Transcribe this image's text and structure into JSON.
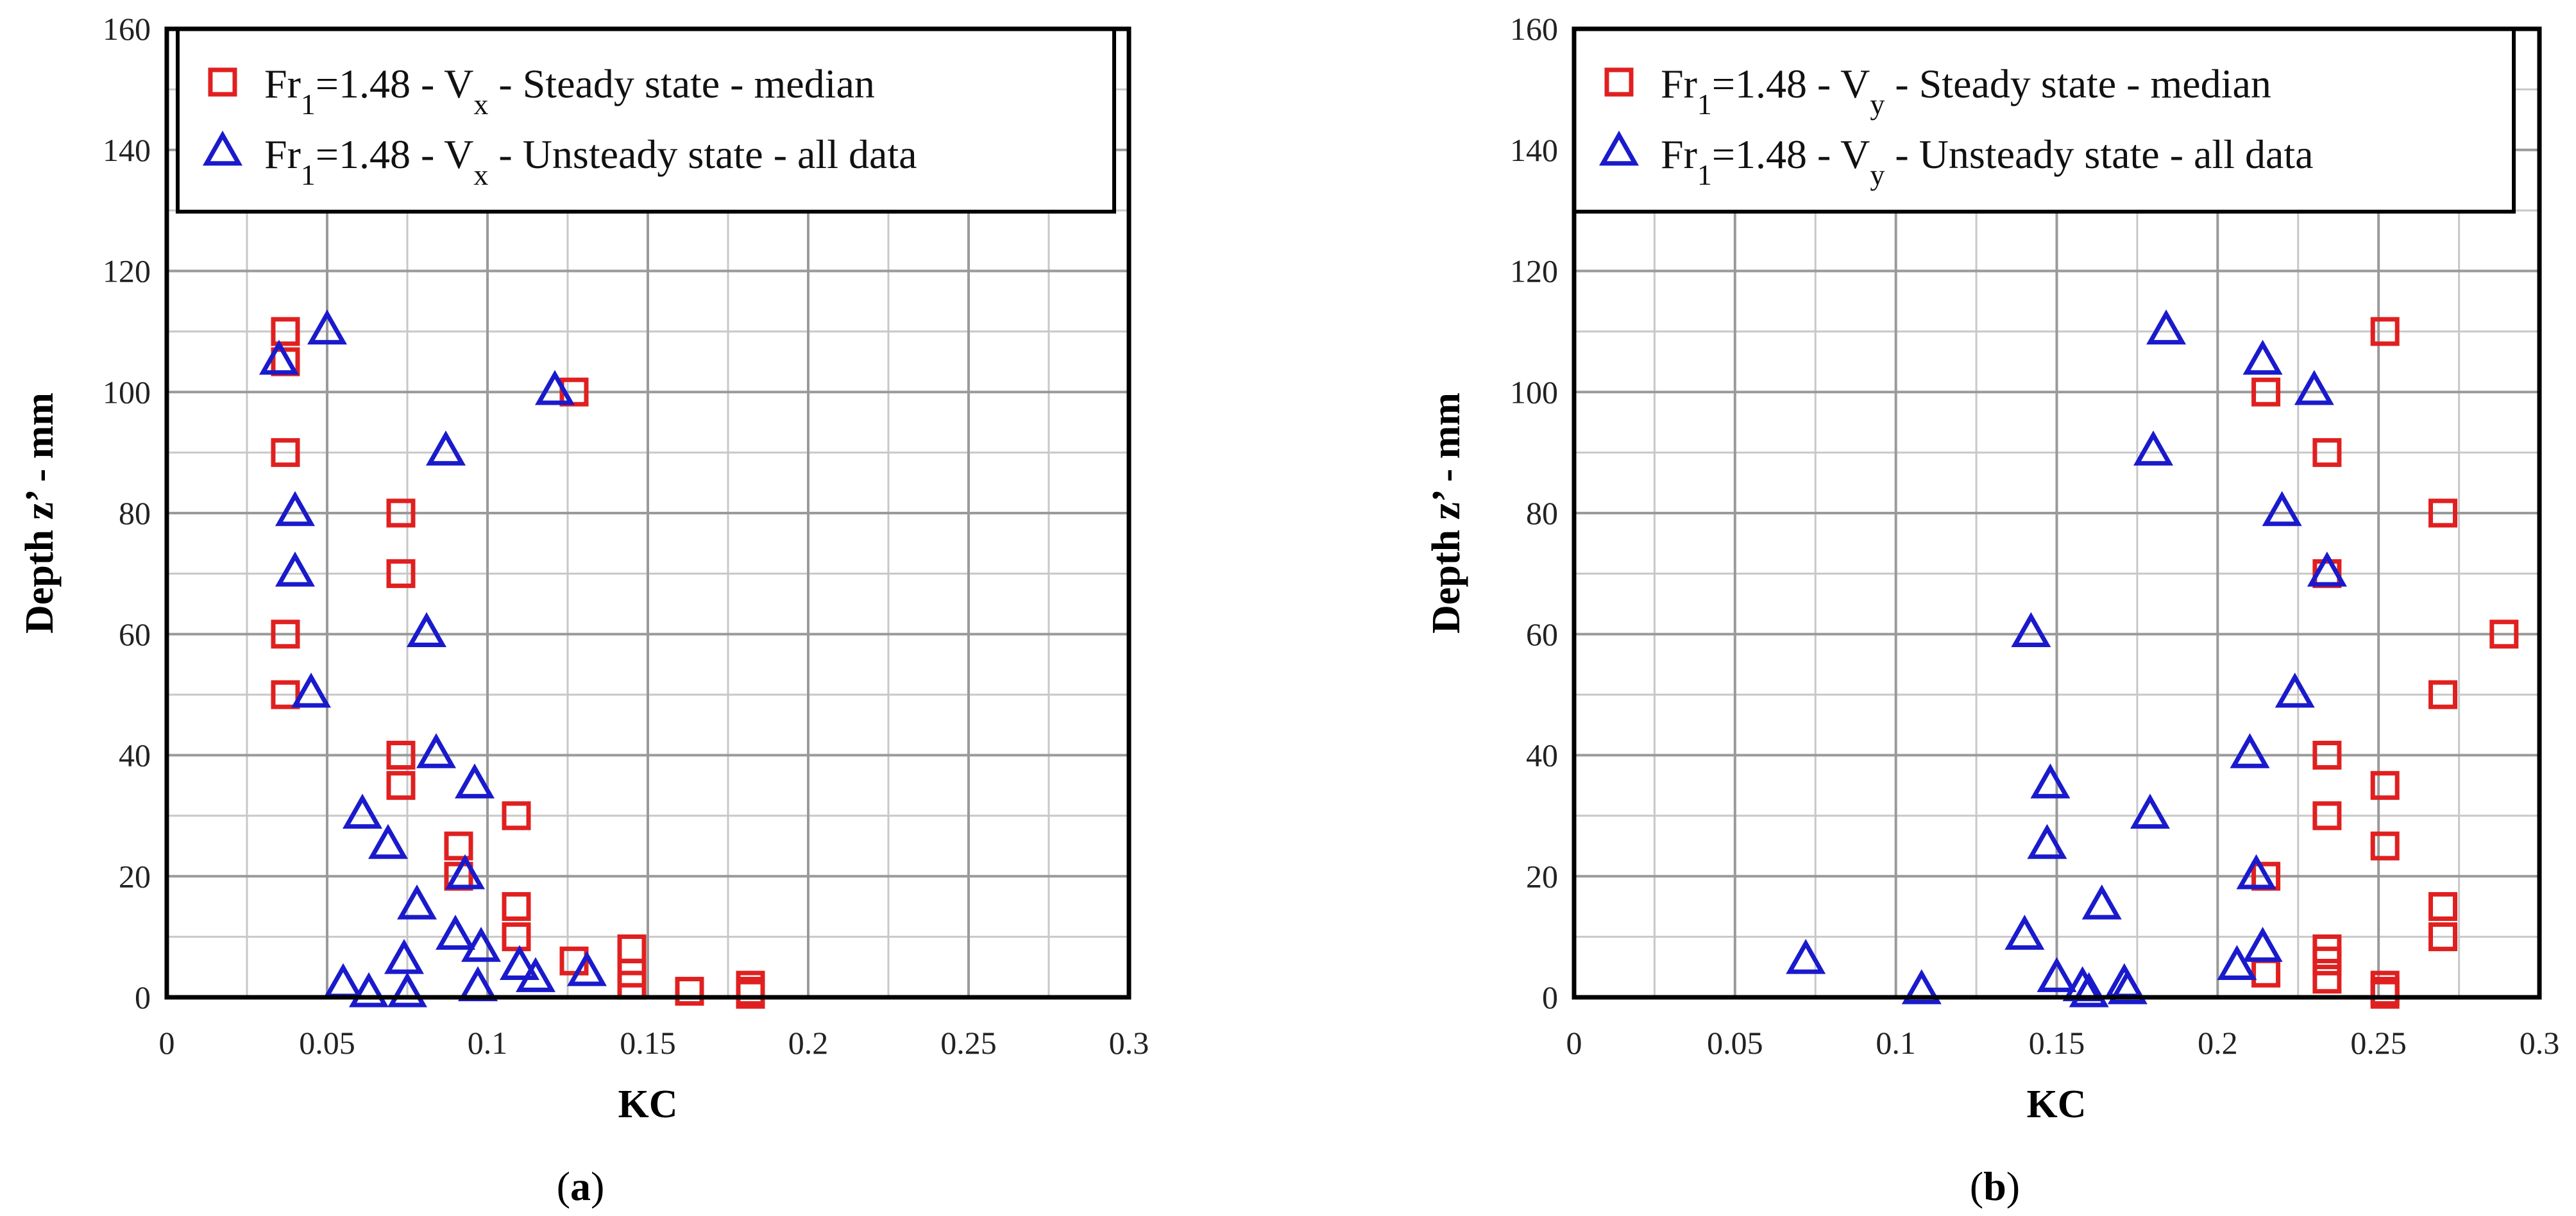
{
  "chart_data": [
    {
      "type": "scatter",
      "panel_label": "(a)",
      "panel_letter": "a",
      "xlabel": "KC",
      "ylabel": "Depth z’ - mm",
      "xlim": [
        0,
        0.3
      ],
      "ylim": [
        0,
        160
      ],
      "x_ticks": [
        0,
        0.05,
        0.1,
        0.15,
        0.2,
        0.25,
        0.3
      ],
      "y_ticks": [
        0,
        20,
        40,
        60,
        80,
        100,
        120,
        140,
        160
      ],
      "x_tick_labels": [
        "0",
        "0.05",
        "0.1",
        "0.15",
        "0.2",
        "0.25",
        "0.3"
      ],
      "y_tick_labels": [
        "0",
        "20",
        "40",
        "60",
        "80",
        "100",
        "120",
        "140",
        "160"
      ],
      "grid": true,
      "legend_placement": "top",
      "legend": [
        {
          "prefix": "Fr",
          "sub1": "1",
          "mid": "=1.48 - V",
          "sub2": "x",
          "suffix": " - Steady state - median"
        },
        {
          "prefix": "Fr",
          "sub1": "1",
          "mid": "=1.48 - V",
          "sub2": "x",
          "suffix": " - Unsteady state - all data"
        }
      ],
      "series": [
        {
          "name": "Fr1=1.48 - Vx - Steady state - median",
          "marker": "square",
          "color": "#e02020",
          "points": [
            [
              0.037,
              110
            ],
            [
              0.037,
              105
            ],
            [
              0.037,
              90
            ],
            [
              0.037,
              60
            ],
            [
              0.037,
              50
            ],
            [
              0.073,
              80
            ],
            [
              0.073,
              70
            ],
            [
              0.073,
              40
            ],
            [
              0.073,
              35
            ],
            [
              0.091,
              25
            ],
            [
              0.091,
              20
            ],
            [
              0.109,
              30
            ],
            [
              0.109,
              15
            ],
            [
              0.109,
              10
            ],
            [
              0.127,
              100
            ],
            [
              0.127,
              6
            ],
            [
              0.145,
              8
            ],
            [
              0.145,
              4
            ],
            [
              0.145,
              2
            ],
            [
              0.163,
              1
            ],
            [
              0.182,
              2
            ],
            [
              0.182,
              1
            ],
            [
              0.182,
              0.5
            ]
          ]
        },
        {
          "name": "Fr1=1.48 - Vx - Unsteady state - all data",
          "marker": "triangle",
          "color": "#1a1acc",
          "points": [
            [
              0.05,
              110
            ],
            [
              0.035,
              105
            ],
            [
              0.121,
              100
            ],
            [
              0.087,
              90
            ],
            [
              0.04,
              80
            ],
            [
              0.04,
              70
            ],
            [
              0.081,
              60
            ],
            [
              0.045,
              50
            ],
            [
              0.084,
              40
            ],
            [
              0.096,
              35
            ],
            [
              0.061,
              30
            ],
            [
              0.069,
              25
            ],
            [
              0.093,
              20
            ],
            [
              0.078,
              15
            ],
            [
              0.09,
              10
            ],
            [
              0.098,
              8
            ],
            [
              0.074,
              6
            ],
            [
              0.11,
              5
            ],
            [
              0.131,
              4
            ],
            [
              0.115,
              3
            ],
            [
              0.055,
              2
            ],
            [
              0.097,
              1.5
            ],
            [
              0.063,
              0.5
            ],
            [
              0.075,
              0.5
            ]
          ]
        }
      ]
    },
    {
      "type": "scatter",
      "panel_label": "(b)",
      "panel_letter": "b",
      "xlabel": "KC",
      "ylabel": "Depth z’ - mm",
      "xlim": [
        0,
        0.3
      ],
      "ylim": [
        0,
        160
      ],
      "x_ticks": [
        0,
        0.05,
        0.1,
        0.15,
        0.2,
        0.25,
        0.3
      ],
      "y_ticks": [
        0,
        20,
        40,
        60,
        80,
        100,
        120,
        140,
        160
      ],
      "x_tick_labels": [
        "0",
        "0.05",
        "0.1",
        "0.15",
        "0.2",
        "0.25",
        "0.3"
      ],
      "y_tick_labels": [
        "0",
        "20",
        "40",
        "60",
        "80",
        "100",
        "120",
        "140",
        "160"
      ],
      "grid": true,
      "legend_placement": "top",
      "legend": [
        {
          "prefix": "Fr",
          "sub1": "1",
          "mid": "=1.48 - V",
          "sub2": "y",
          "suffix": " - Steady state - median"
        },
        {
          "prefix": "Fr",
          "sub1": "1",
          "mid": "=1.48 - V",
          "sub2": "y",
          "suffix": " - Unsteady state - all data"
        }
      ],
      "series": [
        {
          "name": "Fr1=1.48 - Vy - Steady state - median",
          "marker": "square",
          "color": "#e02020",
          "points": [
            [
              0.252,
              110
            ],
            [
              0.215,
              100
            ],
            [
              0.234,
              90
            ],
            [
              0.27,
              80
            ],
            [
              0.234,
              70
            ],
            [
              0.289,
              60
            ],
            [
              0.27,
              50
            ],
            [
              0.234,
              40
            ],
            [
              0.252,
              35
            ],
            [
              0.234,
              30
            ],
            [
              0.252,
              25
            ],
            [
              0.215,
              20
            ],
            [
              0.27,
              15
            ],
            [
              0.27,
              10
            ],
            [
              0.234,
              8
            ],
            [
              0.234,
              6
            ],
            [
              0.215,
              4
            ],
            [
              0.234,
              3
            ],
            [
              0.252,
              2
            ],
            [
              0.252,
              1
            ],
            [
              0.252,
              0.5
            ]
          ]
        },
        {
          "name": "Fr1=1.48 - Vy - Unsteady state - all data",
          "marker": "triangle",
          "color": "#1a1acc",
          "points": [
            [
              0.184,
              110
            ],
            [
              0.214,
              105
            ],
            [
              0.23,
              100
            ],
            [
              0.18,
              90
            ],
            [
              0.22,
              80
            ],
            [
              0.234,
              70
            ],
            [
              0.142,
              60
            ],
            [
              0.224,
              50
            ],
            [
              0.21,
              40
            ],
            [
              0.148,
              35
            ],
            [
              0.179,
              30
            ],
            [
              0.147,
              25
            ],
            [
              0.212,
              20
            ],
            [
              0.164,
              15
            ],
            [
              0.14,
              10
            ],
            [
              0.214,
              8
            ],
            [
              0.072,
              6
            ],
            [
              0.206,
              5
            ],
            [
              0.15,
              3
            ],
            [
              0.171,
              2
            ],
            [
              0.158,
              1.5
            ],
            [
              0.108,
              1
            ],
            [
              0.172,
              1
            ],
            [
              0.16,
              0.5
            ]
          ]
        }
      ]
    }
  ]
}
